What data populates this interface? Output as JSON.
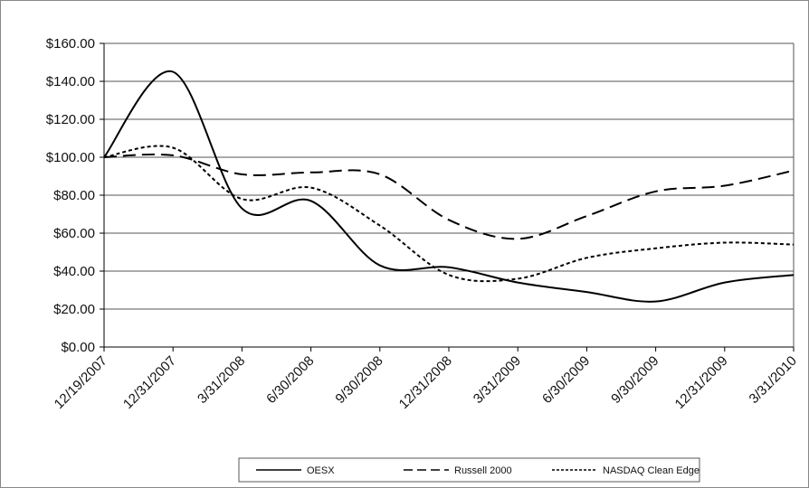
{
  "chart_data": {
    "type": "line",
    "title": "",
    "xlabel": "",
    "ylabel": "",
    "categories": [
      "12/19/2007",
      "12/31/2007",
      "3/31/2008",
      "6/30/2008",
      "9/30/2008",
      "12/31/2008",
      "3/31/2009",
      "6/30/2009",
      "9/30/2009",
      "12/31/2009",
      "3/31/2010"
    ],
    "ylim": [
      0,
      160
    ],
    "yticks": [
      0,
      20,
      40,
      60,
      80,
      100,
      120,
      140,
      160
    ],
    "ytick_labels": [
      "$0.00",
      "$20.00",
      "$40.00",
      "$60.00",
      "$80.00",
      "$100.00",
      "$120.00",
      "$140.00",
      "$160.00"
    ],
    "grid": true,
    "legend_position": "bottom",
    "series": [
      {
        "name": "OESX",
        "dash": "solid",
        "color": "#000000",
        "values": [
          100,
          145,
          73,
          77,
          43,
          42,
          34,
          29,
          24,
          34,
          38
        ]
      },
      {
        "name": "Russell 2000",
        "dash": "dashed",
        "color": "#000000",
        "values": [
          100,
          101,
          91,
          92,
          91,
          67,
          57,
          69,
          82,
          85,
          93
        ]
      },
      {
        "name": "NASDAQ Clean Edge",
        "dash": "dotted",
        "color": "#000000",
        "values": [
          100,
          105,
          78,
          84,
          64,
          38,
          36,
          47,
          52,
          55,
          54
        ]
      }
    ]
  }
}
